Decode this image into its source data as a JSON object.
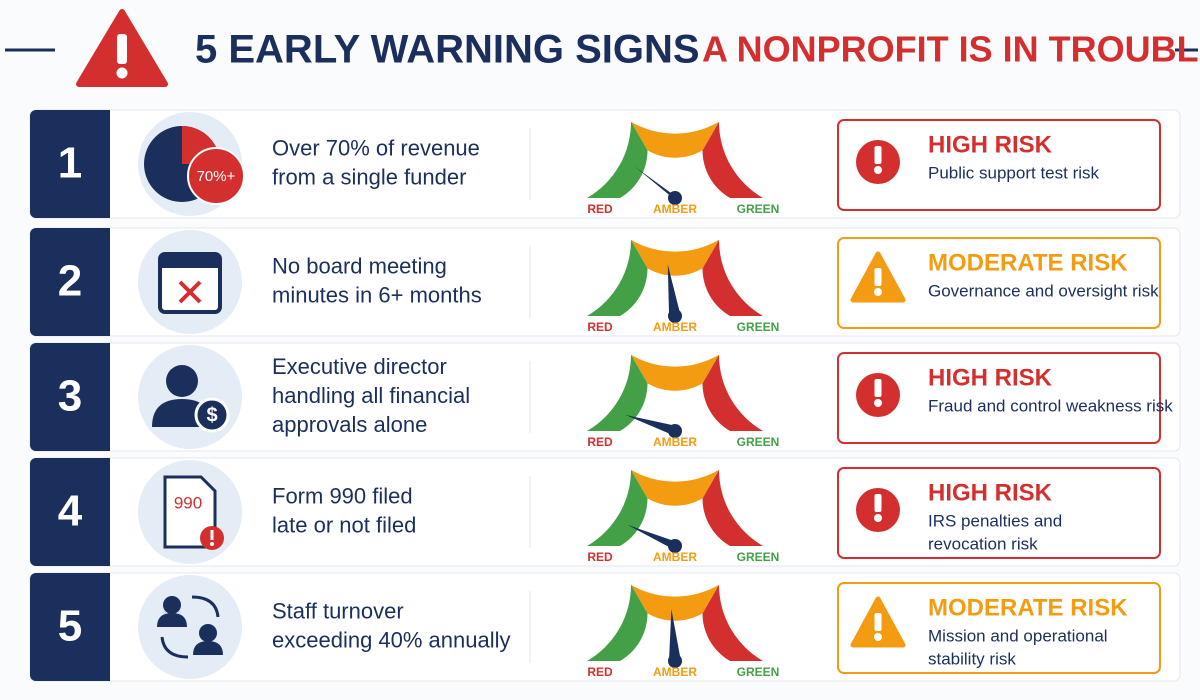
{
  "header": {
    "title_main": "5 EARLY WARNING SIGNS",
    "title_accent": "A NONPROFIT IS IN TROUBLE."
  },
  "gauge_labels": [
    "RED",
    "AMBER",
    "GREEN"
  ],
  "rows": [
    {
      "number": 1,
      "label": [
        "Over 70% of revenue",
        "from a single funder"
      ],
      "icon_text": "70%+",
      "risk": "HIGH RISK",
      "description": [
        "Public support test risk"
      ]
    },
    {
      "number": 2,
      "label": [
        "No board meeting",
        "minutes in 6+ months"
      ],
      "risk": "MODERATE RISK",
      "description": [
        "Governance and oversight risk"
      ]
    },
    {
      "number": 3,
      "label": [
        "Executive director",
        "handling all financial",
        "approvals alone"
      ],
      "icon_text": "$",
      "risk": "HIGH RISK",
      "description": [
        "Fraud and control weakness risk"
      ]
    },
    {
      "number": 4,
      "label": [
        "Form 990 filed",
        "late or not filed"
      ],
      "icon_text": "990",
      "risk": "HIGH RISK",
      "description": [
        "IRS penalties and",
        "revocation risk"
      ]
    },
    {
      "number": 5,
      "label": [
        "Staff turnover",
        "exceeding 40% annually"
      ],
      "risk": "MODERATE RISK",
      "description": [
        "Mission and operational",
        "stability risk"
      ]
    }
  ]
}
